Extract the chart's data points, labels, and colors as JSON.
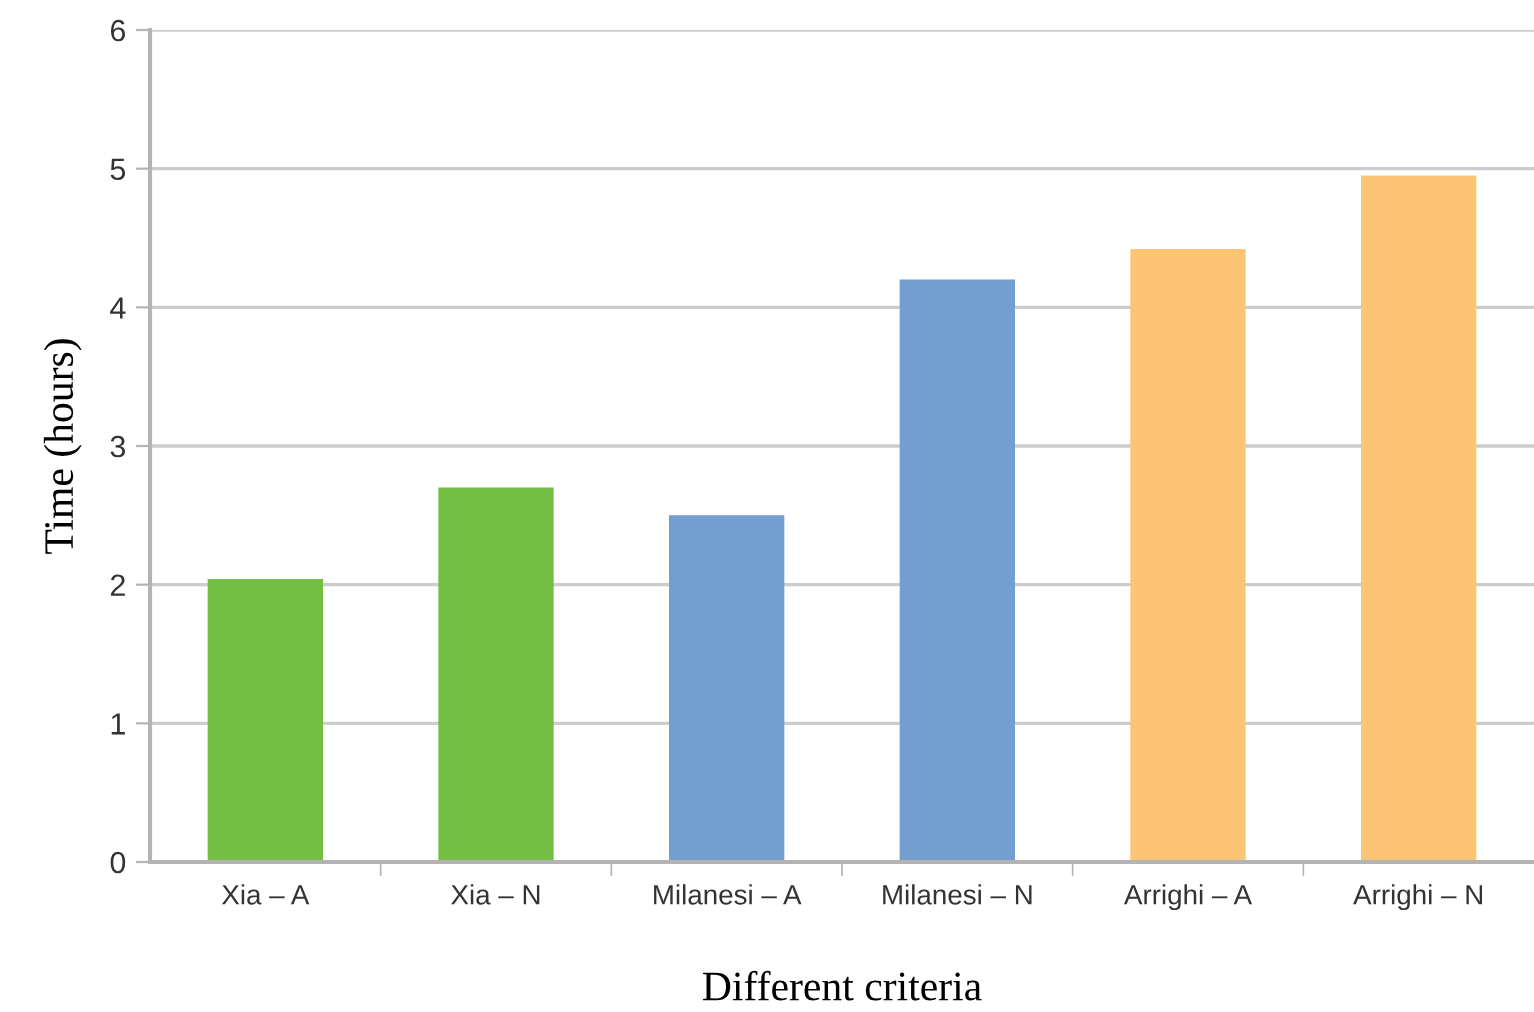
{
  "chart_data": {
    "type": "bar",
    "categories": [
      "Xia – A",
      "Xia – N",
      "Milanesi – A",
      "Milanesi – N",
      "Arrighi – A",
      "Arrighi – N"
    ],
    "values": [
      2.04,
      2.7,
      2.5,
      4.2,
      4.42,
      4.95
    ],
    "colors": [
      "#72bf44",
      "#72bf44",
      "#729fcf",
      "#729fcf",
      "#fcc474",
      "#fcc474"
    ],
    "xlabel": "Different criteria",
    "ylabel": "Time (hours)",
    "ylim": [
      0,
      6
    ],
    "yticks": [
      0,
      1,
      2,
      3,
      4,
      5,
      6
    ],
    "grid": "y"
  }
}
